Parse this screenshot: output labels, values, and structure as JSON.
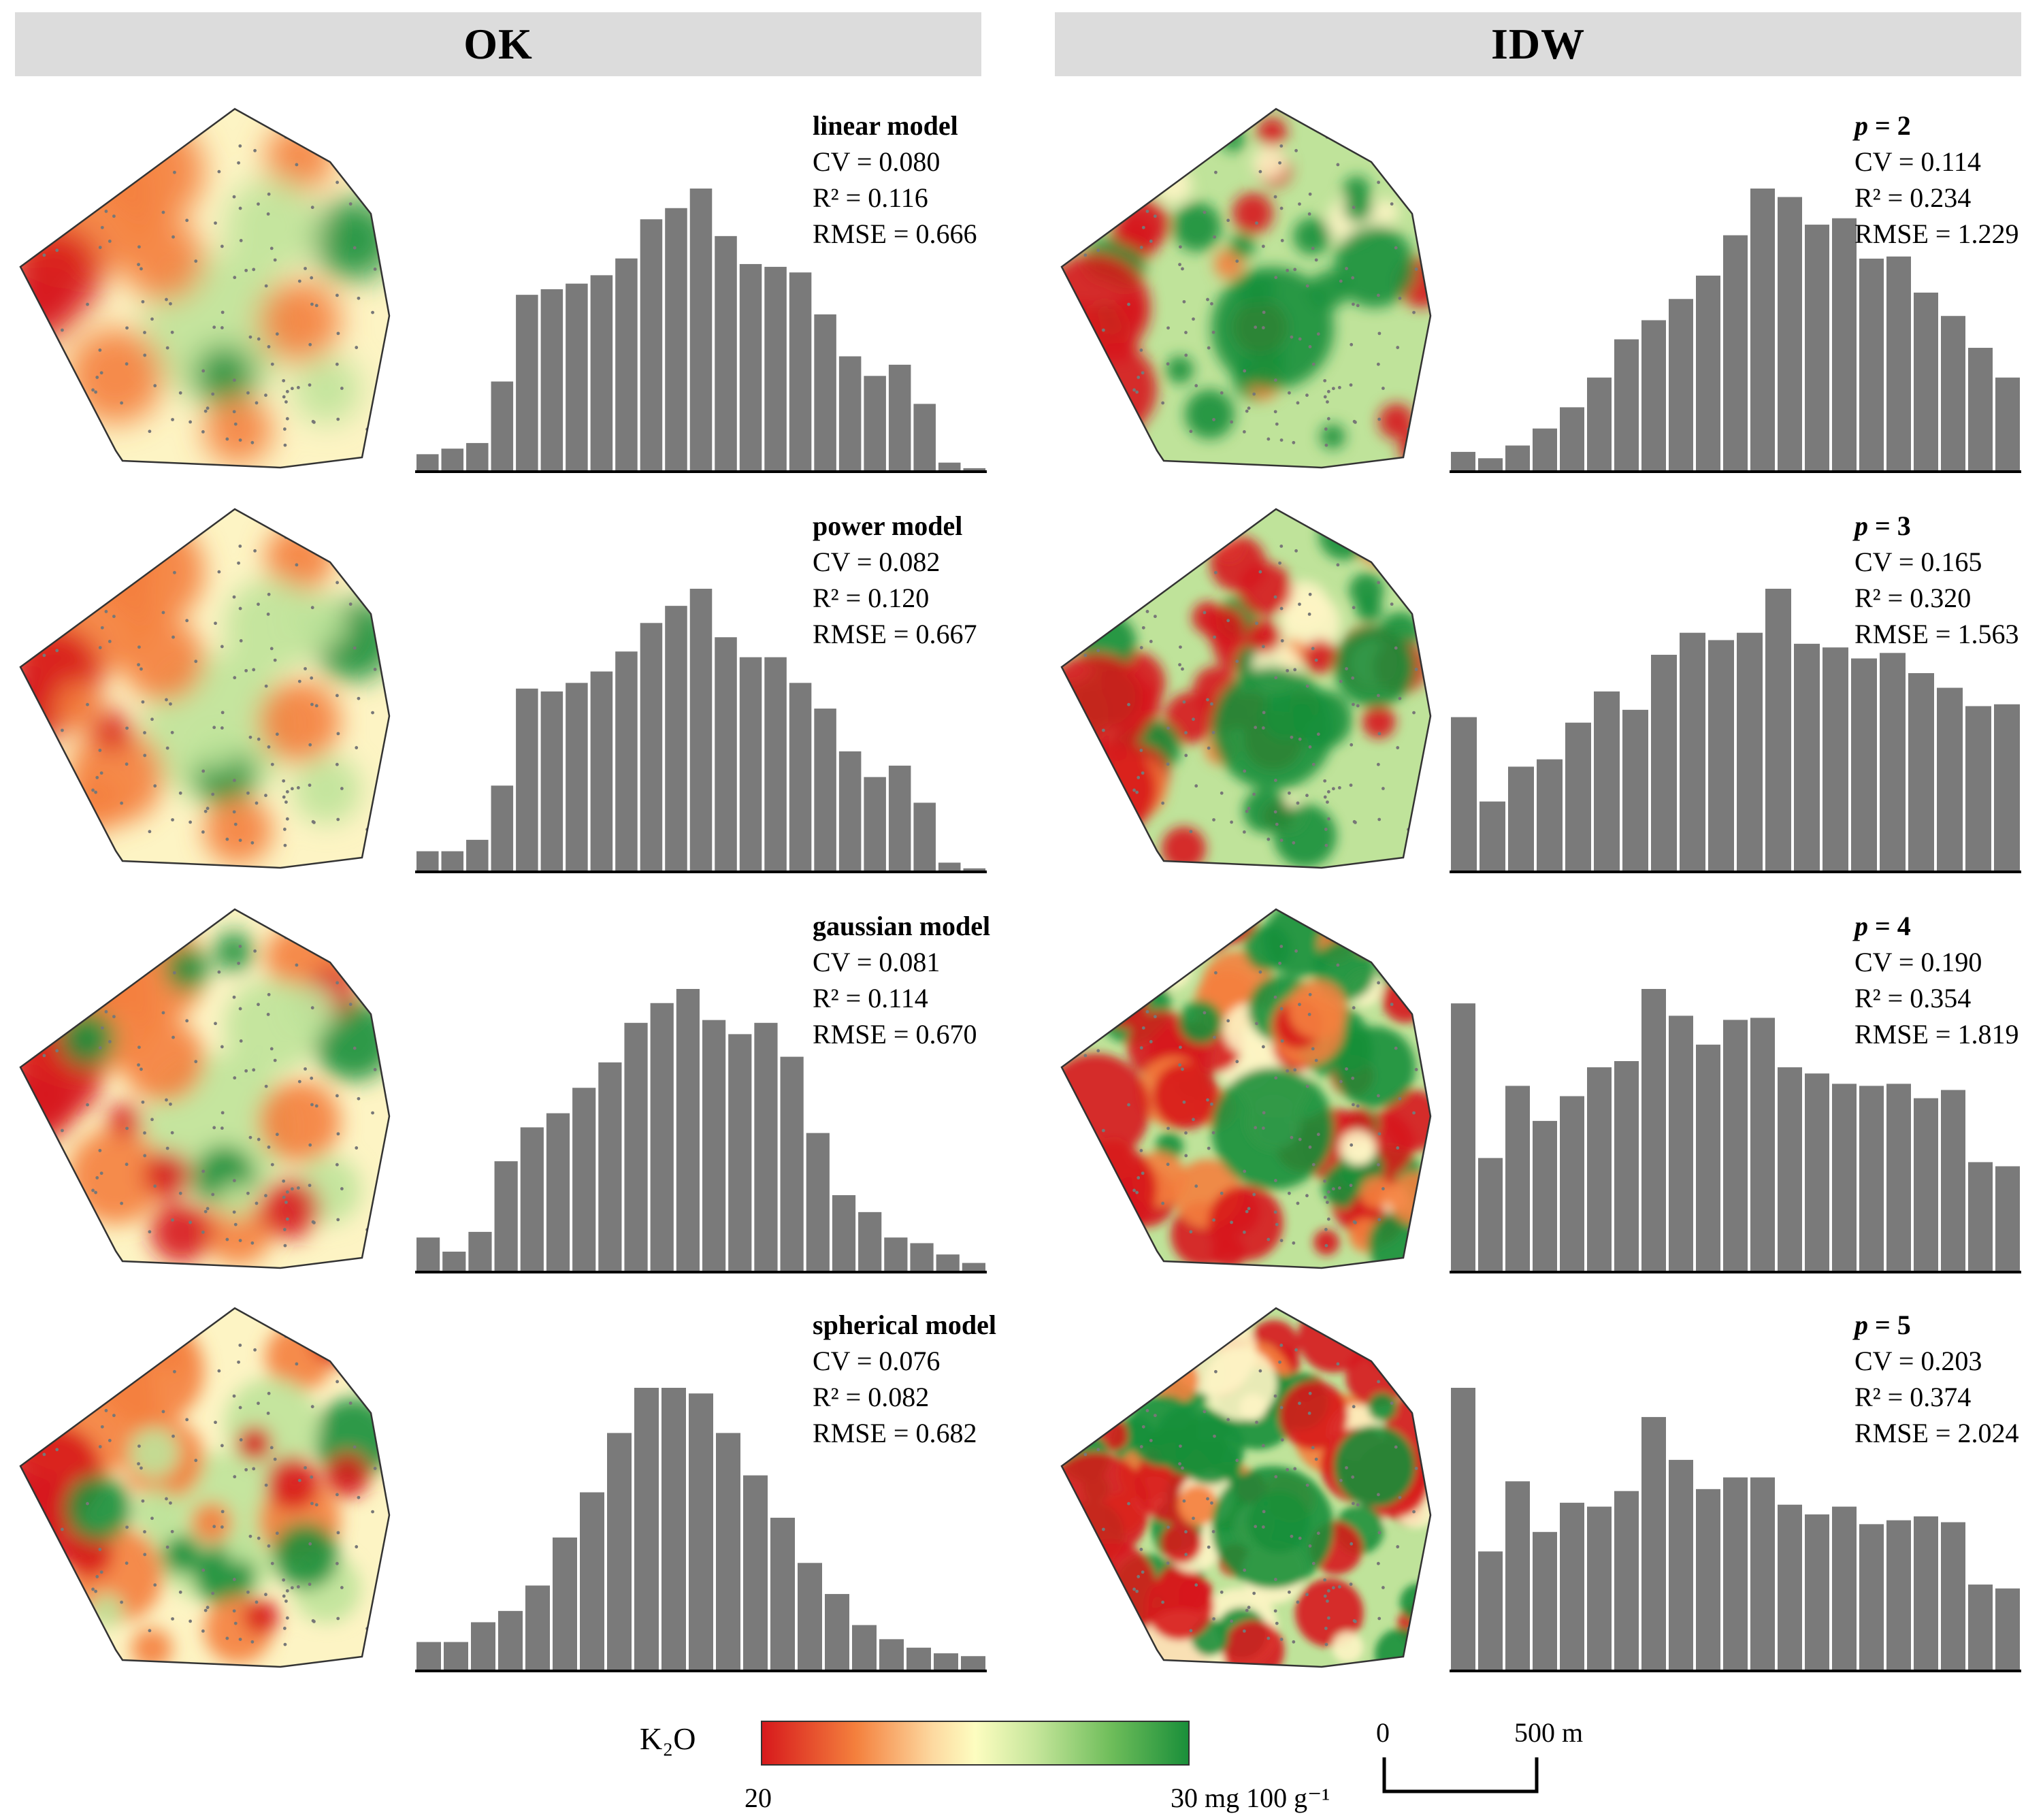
{
  "headers": {
    "ok": "OK",
    "idw": "IDW"
  },
  "panels": [
    {
      "prefix": "",
      "title": "linear model",
      "cv": "CV = 0.080",
      "r2": "R² = 0.116",
      "rmse": "RMSE = 0.666"
    },
    {
      "prefix": "",
      "title": "power model",
      "cv": "CV = 0.082",
      "r2": "R² = 0.120",
      "rmse": "RMSE = 0.667"
    },
    {
      "prefix": "",
      "title": "gaussian model",
      "cv": "CV = 0.081",
      "r2": "R² = 0.114",
      "rmse": "RMSE = 0.670"
    },
    {
      "prefix": "",
      "title": "spherical model",
      "cv": "CV = 0.076",
      "r2": "R² = 0.082",
      "rmse": "RMSE = 0.682"
    },
    {
      "prefix": "p",
      "title": " = 2",
      "cv": "CV = 0.114",
      "r2": "R² = 0.234",
      "rmse": "RMSE = 1.229"
    },
    {
      "prefix": "p",
      "title": " = 3",
      "cv": "CV = 0.165",
      "r2": "R² = 0.320",
      "rmse": "RMSE = 1.563"
    },
    {
      "prefix": "p",
      "title": " = 4",
      "cv": "CV = 0.190",
      "r2": "R² = 0.354",
      "rmse": "RMSE = 1.819"
    },
    {
      "prefix": "p",
      "title": " = 5",
      "cv": "CV = 0.203",
      "r2": "R² = 0.374",
      "rmse": "RMSE = 2.024"
    }
  ],
  "legend": {
    "label": "K₂O",
    "min": "20",
    "max": "30 mg 100 g⁻¹",
    "colors": [
      "#d7191c",
      "#f4803d",
      "#fdfdc0",
      "#6ebd5a",
      "#1a8f3a"
    ]
  },
  "scalebar": {
    "zero": "0",
    "end": "500 m"
  },
  "chart_data": [
    {
      "type": "bar",
      "method": "OK",
      "title": "linear model",
      "values": [
        6,
        8,
        10,
        32,
        63,
        65,
        67,
        70,
        76,
        90,
        94,
        101,
        84,
        74,
        73,
        71,
        56,
        41,
        34,
        38,
        24,
        3,
        1
      ]
    },
    {
      "type": "bar",
      "method": "OK",
      "title": "power model",
      "values": [
        7,
        7,
        11,
        30,
        64,
        63,
        66,
        70,
        77,
        87,
        93,
        99,
        82,
        75,
        75,
        66,
        57,
        42,
        33,
        37,
        24,
        3,
        1
      ]
    },
    {
      "type": "bar",
      "method": "OK",
      "title": "gaussian model",
      "values": [
        12,
        7,
        14,
        39,
        51,
        56,
        65,
        74,
        88,
        95,
        100,
        89,
        84,
        88,
        76,
        49,
        27,
        21,
        12,
        10,
        6,
        3
      ]
    },
    {
      "type": "bar",
      "method": "OK",
      "title": "spherical model",
      "values": [
        10,
        10,
        17,
        21,
        30,
        47,
        63,
        84,
        100,
        100,
        98,
        84,
        69,
        54,
        38,
        27,
        16,
        11,
        8,
        6,
        5
      ]
    },
    {
      "type": "bar",
      "method": "IDW",
      "title": "p = 2",
      "values": [
        9,
        6,
        12,
        20,
        30,
        44,
        62,
        71,
        81,
        92,
        111,
        133,
        129,
        116,
        119,
        100,
        101,
        84,
        73,
        58,
        44
      ]
    },
    {
      "type": "bar",
      "method": "IDW",
      "title": "p = 3",
      "values": [
        84,
        38,
        57,
        61,
        81,
        98,
        88,
        118,
        130,
        126,
        130,
        154,
        124,
        122,
        116,
        119,
        108,
        100,
        90,
        91
      ]
    },
    {
      "type": "bar",
      "method": "IDW",
      "title": "p = 4",
      "values": [
        130,
        55,
        90,
        73,
        85,
        99,
        102,
        137,
        124,
        110,
        122,
        123,
        99,
        96,
        91,
        90,
        91,
        84,
        88,
        53,
        51
      ]
    },
    {
      "type": "bar",
      "method": "IDW",
      "title": "p = 5",
      "values": [
        145,
        61,
        97,
        71,
        86,
        84,
        92,
        130,
        108,
        93,
        99,
        99,
        85,
        80,
        84,
        75,
        77,
        79,
        76,
        44,
        42
      ]
    }
  ]
}
